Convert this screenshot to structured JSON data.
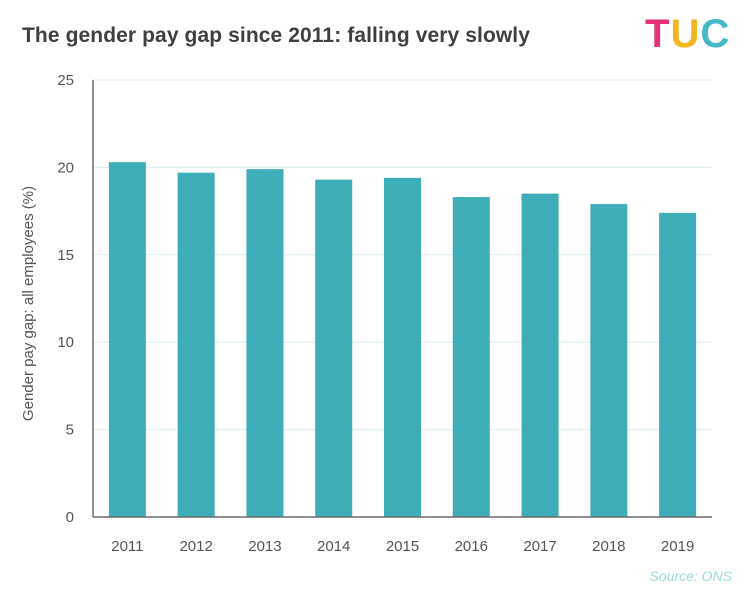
{
  "header": {
    "title": "The gender pay gap since 2011: falling very slowly",
    "logo_text": [
      "T",
      "U",
      "C"
    ]
  },
  "footer": {
    "source": "Source: ONS"
  },
  "colors": {
    "bar": "#3dadb8",
    "grid": "#dcefeF",
    "axis": "#6b6b6b",
    "text": "#555555"
  },
  "chart_data": {
    "type": "bar",
    "title": "The gender pay gap since 2011: falling very slowly",
    "xlabel": "",
    "ylabel": "Gender pay gap: all employees (%)",
    "categories": [
      "2011",
      "2012",
      "2013",
      "2014",
      "2015",
      "2016",
      "2017",
      "2018",
      "2019"
    ],
    "values": [
      20.3,
      19.7,
      19.9,
      19.3,
      19.4,
      18.3,
      18.5,
      17.9,
      17.4
    ],
    "ylim": [
      0,
      25
    ],
    "yticks": [
      0,
      5,
      10,
      15,
      20,
      25
    ],
    "grid": true,
    "legend": "none"
  }
}
